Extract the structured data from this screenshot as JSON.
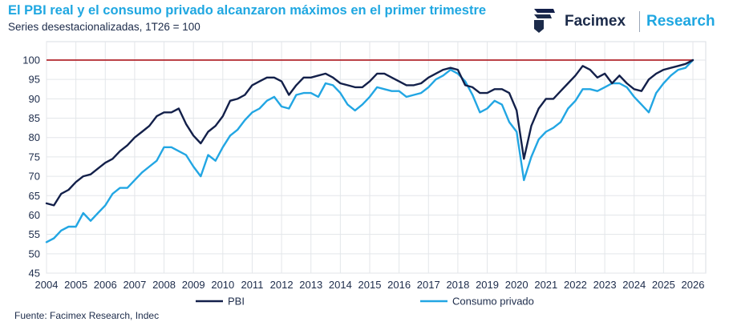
{
  "header": {
    "title": "El PBI real y el consumo privado alcanzaron máximos en el primer trimestre",
    "subtitle": "Series desestacionalizadas, 1T26 = 100"
  },
  "brand": {
    "name": "Facimex",
    "division": "Research",
    "logo_icon": "facimex-logo-icon"
  },
  "footer": {
    "source": "Fuente: Facimex Research, Indec"
  },
  "colors": {
    "pbi": "#13204a",
    "consumo": "#22a6e3",
    "reference_line": "#b3262d",
    "accent": "#1fa7e1"
  },
  "chart_data": {
    "type": "line",
    "title": "El PBI real y el consumo privado alcanzaron máximos en el primer trimestre",
    "subtitle": "Series desestacionalizadas, 1T26 = 100",
    "x_start": "2004",
    "x_end": "2026",
    "quarters_per_year": 4,
    "ylim": [
      45,
      100
    ],
    "yticks": [
      45,
      50,
      55,
      60,
      65,
      70,
      75,
      80,
      85,
      90,
      95,
      100
    ],
    "xticks": [
      "2004",
      "2005",
      "2006",
      "2007",
      "2008",
      "2009",
      "2010",
      "2011",
      "2012",
      "2013",
      "2014",
      "2015",
      "2016",
      "2017",
      "2018",
      "2019",
      "2020",
      "2021",
      "2022",
      "2023",
      "2024",
      "2025",
      "2026"
    ],
    "reference_line": 100,
    "grid": true,
    "legend": "bottom",
    "series": [
      {
        "name": "PBI",
        "values": [
          63.0,
          62.5,
          65.5,
          66.5,
          68.5,
          70.0,
          70.5,
          72.0,
          73.5,
          74.5,
          76.5,
          78.0,
          80.0,
          81.5,
          83.0,
          85.5,
          86.5,
          86.5,
          87.5,
          83.5,
          80.5,
          78.5,
          81.5,
          83.0,
          85.5,
          89.5,
          90.0,
          91.0,
          93.5,
          94.5,
          95.5,
          95.5,
          94.5,
          91.0,
          93.5,
          95.5,
          95.5,
          96.0,
          96.5,
          95.5,
          94.0,
          93.5,
          93.0,
          93.0,
          94.5,
          96.5,
          96.5,
          95.5,
          94.5,
          93.5,
          93.5,
          94.0,
          95.5,
          96.5,
          97.5,
          98.0,
          97.5,
          93.5,
          93.0,
          91.5,
          91.5,
          92.5,
          92.5,
          91.5,
          87.0,
          74.5,
          83.0,
          87.5,
          90.0,
          90.0,
          92.0,
          94.0,
          96.0,
          98.5,
          97.5,
          95.5,
          96.5,
          94.0,
          96.0,
          94.0,
          92.5,
          92.0,
          95.0,
          96.5,
          97.5,
          98.0,
          98.5,
          99.0,
          100.0
        ]
      },
      {
        "name": "Consumo privado",
        "values": [
          53.0,
          54.0,
          56.0,
          57.0,
          57.0,
          60.5,
          58.5,
          60.5,
          62.5,
          65.5,
          67.0,
          67.0,
          69.0,
          71.0,
          72.5,
          74.0,
          77.5,
          77.5,
          76.5,
          75.5,
          72.5,
          70.0,
          75.5,
          74.0,
          77.5,
          80.5,
          82.0,
          84.5,
          86.5,
          87.5,
          89.5,
          90.5,
          88.0,
          87.5,
          91.0,
          91.5,
          91.5,
          90.5,
          94.0,
          93.5,
          91.5,
          88.5,
          87.0,
          88.5,
          90.5,
          93.0,
          92.5,
          92.0,
          92.0,
          90.5,
          91.0,
          91.5,
          93.0,
          95.0,
          96.0,
          97.5,
          96.5,
          94.5,
          91.0,
          86.5,
          87.5,
          89.5,
          88.5,
          84.0,
          81.5,
          69.0,
          75.0,
          79.5,
          81.5,
          82.5,
          84.0,
          87.5,
          89.5,
          92.5,
          92.5,
          92.0,
          93.0,
          94.0,
          94.0,
          93.0,
          90.5,
          88.5,
          86.5,
          91.5,
          94.0,
          96.0,
          97.5,
          98.0,
          100.0
        ]
      }
    ]
  }
}
